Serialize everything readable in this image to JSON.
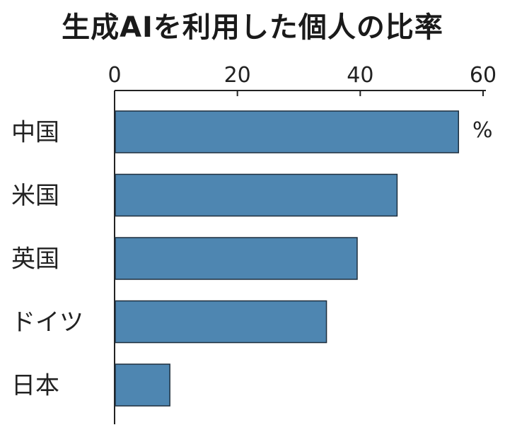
{
  "chart_data": {
    "type": "bar",
    "orientation": "horizontal",
    "title": "生成AIを利用した個人の比率",
    "unit": "%",
    "categories": [
      "中国",
      "米国",
      "英国",
      "ドイツ",
      "日本"
    ],
    "values": [
      56,
      46,
      39.5,
      34.5,
      9
    ],
    "xlim": [
      0,
      60
    ],
    "xticks": [
      "0",
      "20",
      "40",
      "60"
    ],
    "axis_position": "top",
    "grid": false,
    "bar_color": "#4e86b1",
    "bar_edge_color": "#1f2f3d"
  }
}
